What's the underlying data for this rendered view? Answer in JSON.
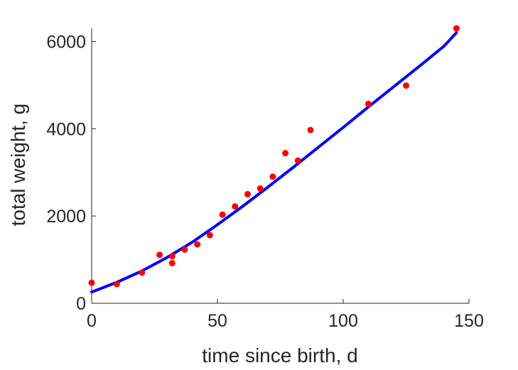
{
  "chart_data": {
    "type": "scatter",
    "xlabel": "time since birth, d",
    "ylabel": "total weight, g",
    "xlim": [
      0,
      150
    ],
    "ylim": [
      0,
      6300
    ],
    "x_ticks": [
      0,
      50,
      100,
      150
    ],
    "y_ticks": [
      0,
      2000,
      4000,
      6000
    ],
    "grid": false,
    "legend": "none",
    "series": [
      {
        "kind": "points",
        "color": "#ff0000",
        "points": [
          {
            "x": 0,
            "y": 470
          },
          {
            "x": 10,
            "y": 440
          },
          {
            "x": 20,
            "y": 700
          },
          {
            "x": 27,
            "y": 1110
          },
          {
            "x": 32,
            "y": 1080
          },
          {
            "x": 32,
            "y": 920
          },
          {
            "x": 37,
            "y": 1230
          },
          {
            "x": 42,
            "y": 1350
          },
          {
            "x": 47,
            "y": 1560
          },
          {
            "x": 52,
            "y": 2030
          },
          {
            "x": 57,
            "y": 2220
          },
          {
            "x": 62,
            "y": 2500
          },
          {
            "x": 67,
            "y": 2630
          },
          {
            "x": 72,
            "y": 2900
          },
          {
            "x": 77,
            "y": 3440
          },
          {
            "x": 82,
            "y": 3270
          },
          {
            "x": 87,
            "y": 3970
          },
          {
            "x": 110,
            "y": 4570
          },
          {
            "x": 125,
            "y": 4990
          },
          {
            "x": 145,
            "y": 6300
          }
        ]
      },
      {
        "kind": "line",
        "color": "#0000ff",
        "points": [
          {
            "x": 0,
            "y": 255
          },
          {
            "x": 10,
            "y": 480
          },
          {
            "x": 20,
            "y": 740
          },
          {
            "x": 30,
            "y": 1050
          },
          {
            "x": 40,
            "y": 1400
          },
          {
            "x": 50,
            "y": 1800
          },
          {
            "x": 60,
            "y": 2220
          },
          {
            "x": 70,
            "y": 2660
          },
          {
            "x": 80,
            "y": 3110
          },
          {
            "x": 90,
            "y": 3570
          },
          {
            "x": 100,
            "y": 4030
          },
          {
            "x": 110,
            "y": 4500
          },
          {
            "x": 120,
            "y": 4960
          },
          {
            "x": 130,
            "y": 5420
          },
          {
            "x": 140,
            "y": 5890
          },
          {
            "x": 145,
            "y": 6200
          }
        ]
      }
    ]
  }
}
